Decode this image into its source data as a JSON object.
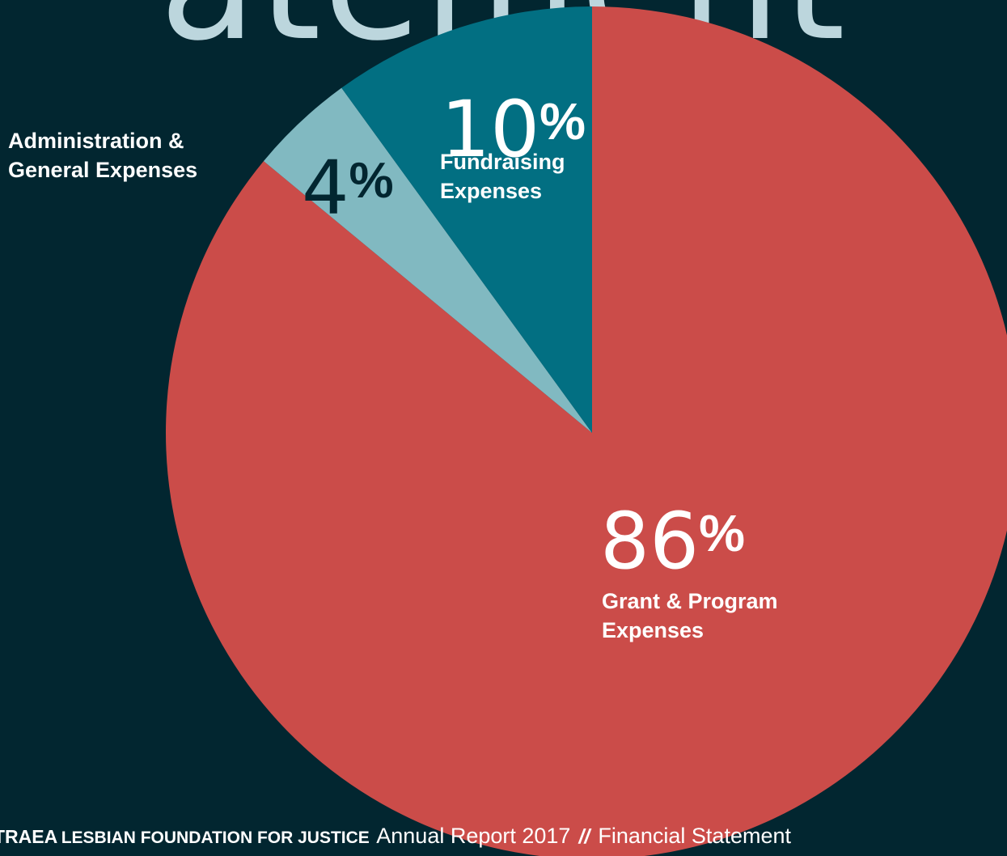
{
  "header": {
    "title_fragment": "atement"
  },
  "chart_data": {
    "type": "pie",
    "slices": [
      {
        "label": "Grant & Program Expenses",
        "label_lines": [
          "Grant & Program",
          "Expenses"
        ],
        "value": 86,
        "display": "86",
        "color": "#cb4c49"
      },
      {
        "label": "Administration & General Expenses",
        "label_lines": [
          "Administration &",
          "General Expenses"
        ],
        "value": 4,
        "display": "4",
        "color": "#81b9c1"
      },
      {
        "label": "Fundraising Expenses",
        "label_lines": [
          "Fundraising",
          "Expenses"
        ],
        "value": 10,
        "display": "10",
        "color": "#026f82"
      }
    ],
    "percent_sign": "%",
    "start_angle_deg": 0,
    "direction": "clockwise",
    "legend": "none"
  },
  "footer": {
    "org_bold": "TRAEA",
    "org_rest": "LESBIAN FOUNDATION FOR JUSTICE",
    "report": "Annual Report 2017",
    "separator": "//",
    "section": "Financial Statement"
  },
  "colors": {
    "background": "#022630",
    "heading": "#bcd6dd",
    "text_on_dark": "#ffffff",
    "text_on_light": "#022630"
  }
}
